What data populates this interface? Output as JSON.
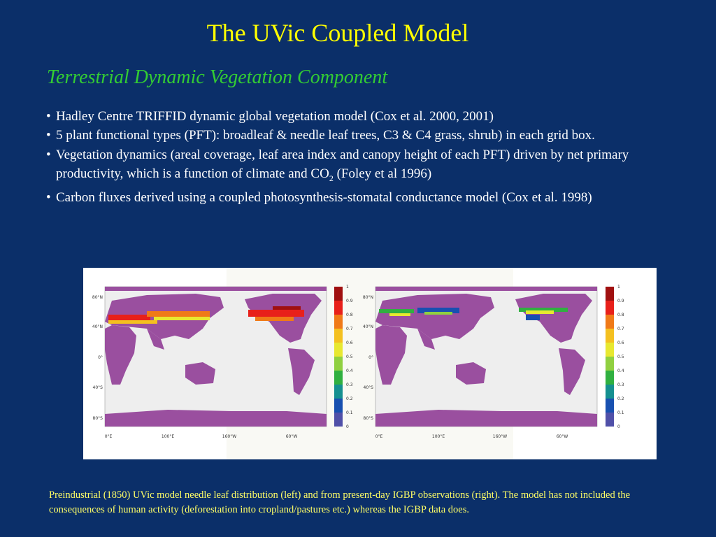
{
  "title": "The UVic Coupled Model",
  "subtitle": "Terrestrial Dynamic Vegetation Component",
  "bullet_marker": "•",
  "bullets": [
    {
      "text": "Hadley Centre TRIFFID dynamic global vegetation model (Cox et al. 2000, 2001)"
    },
    {
      "text": "5 plant functional types (PFT): broadleaf & needle leaf trees, C3 & C4 grass, shrub) in each grid box."
    },
    {
      "text": "Vegetation dynamics (areal coverage, leaf area index and canopy height of each PFT) driven by net primary productivity, which is a function of climate and CO",
      "sub": "2",
      "tail": " (Foley et al 1996)"
    },
    {
      "text": "Carbon fluxes derived using a coupled photosynthesis-stomatal conductance model (Cox et al. 1998)"
    }
  ],
  "figure": {
    "lat_labels": [
      "80°N",
      "40°N",
      "0°",
      "40°S",
      "80°S"
    ],
    "lon_labels": [
      "0°E",
      "100°E",
      "160°W",
      "60°W"
    ],
    "colorbar_labels": [
      "1",
      "0.9",
      "0.8",
      "0.7",
      "0.6",
      "0.5",
      "0.4",
      "0.3",
      "0.2",
      "0.1",
      "0"
    ],
    "colorbar_colors": [
      "#a01010",
      "#e8201a",
      "#f07a18",
      "#f4c020",
      "#e8e830",
      "#90d040",
      "#30b040",
      "#159090",
      "#1850b0",
      "#5050a8"
    ]
  },
  "caption": "Preindustrial (1850) UVic model needle leaf distribution (left) and from present-day IGBP observations (right). The model has not included the consequences of human activity (deforestation into cropland/pastures etc.) whereas the IGBP data does."
}
